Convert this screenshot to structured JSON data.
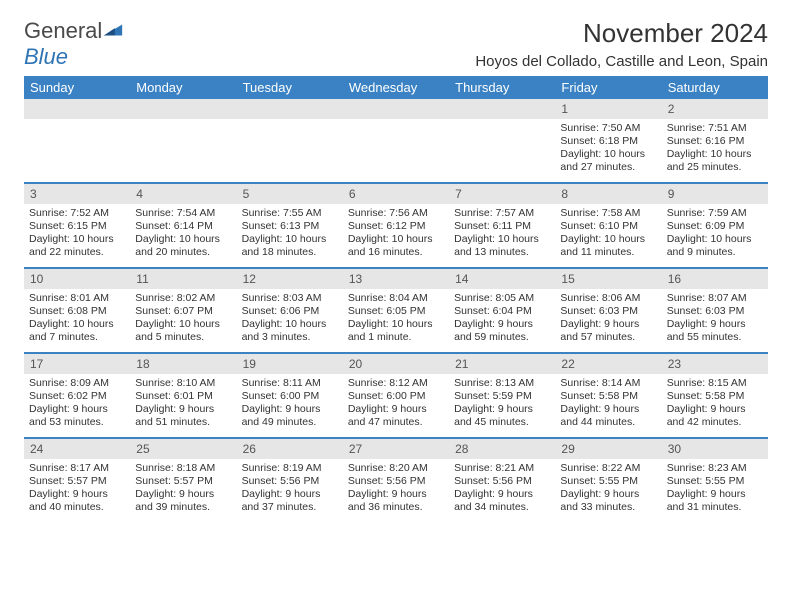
{
  "logo": {
    "text1": "General",
    "text2": "Blue"
  },
  "title": "November 2024",
  "location": "Hoyos del Collado, Castille and Leon, Spain",
  "day_headers": [
    "Sunday",
    "Monday",
    "Tuesday",
    "Wednesday",
    "Thursday",
    "Friday",
    "Saturday"
  ],
  "header_bg": "#3a82c4",
  "strip_bg": "#e6e6e6",
  "weeks": [
    {
      "nums": [
        "",
        "",
        "",
        "",
        "",
        "1",
        "2"
      ],
      "cells": [
        null,
        null,
        null,
        null,
        null,
        {
          "sunrise": "Sunrise: 7:50 AM",
          "sunset": "Sunset: 6:18 PM",
          "daylight": "Daylight: 10 hours and 27 minutes."
        },
        {
          "sunrise": "Sunrise: 7:51 AM",
          "sunset": "Sunset: 6:16 PM",
          "daylight": "Daylight: 10 hours and 25 minutes."
        }
      ]
    },
    {
      "nums": [
        "3",
        "4",
        "5",
        "6",
        "7",
        "8",
        "9"
      ],
      "cells": [
        {
          "sunrise": "Sunrise: 7:52 AM",
          "sunset": "Sunset: 6:15 PM",
          "daylight": "Daylight: 10 hours and 22 minutes."
        },
        {
          "sunrise": "Sunrise: 7:54 AM",
          "sunset": "Sunset: 6:14 PM",
          "daylight": "Daylight: 10 hours and 20 minutes."
        },
        {
          "sunrise": "Sunrise: 7:55 AM",
          "sunset": "Sunset: 6:13 PM",
          "daylight": "Daylight: 10 hours and 18 minutes."
        },
        {
          "sunrise": "Sunrise: 7:56 AM",
          "sunset": "Sunset: 6:12 PM",
          "daylight": "Daylight: 10 hours and 16 minutes."
        },
        {
          "sunrise": "Sunrise: 7:57 AM",
          "sunset": "Sunset: 6:11 PM",
          "daylight": "Daylight: 10 hours and 13 minutes."
        },
        {
          "sunrise": "Sunrise: 7:58 AM",
          "sunset": "Sunset: 6:10 PM",
          "daylight": "Daylight: 10 hours and 11 minutes."
        },
        {
          "sunrise": "Sunrise: 7:59 AM",
          "sunset": "Sunset: 6:09 PM",
          "daylight": "Daylight: 10 hours and 9 minutes."
        }
      ]
    },
    {
      "nums": [
        "10",
        "11",
        "12",
        "13",
        "14",
        "15",
        "16"
      ],
      "cells": [
        {
          "sunrise": "Sunrise: 8:01 AM",
          "sunset": "Sunset: 6:08 PM",
          "daylight": "Daylight: 10 hours and 7 minutes."
        },
        {
          "sunrise": "Sunrise: 8:02 AM",
          "sunset": "Sunset: 6:07 PM",
          "daylight": "Daylight: 10 hours and 5 minutes."
        },
        {
          "sunrise": "Sunrise: 8:03 AM",
          "sunset": "Sunset: 6:06 PM",
          "daylight": "Daylight: 10 hours and 3 minutes."
        },
        {
          "sunrise": "Sunrise: 8:04 AM",
          "sunset": "Sunset: 6:05 PM",
          "daylight": "Daylight: 10 hours and 1 minute."
        },
        {
          "sunrise": "Sunrise: 8:05 AM",
          "sunset": "Sunset: 6:04 PM",
          "daylight": "Daylight: 9 hours and 59 minutes."
        },
        {
          "sunrise": "Sunrise: 8:06 AM",
          "sunset": "Sunset: 6:03 PM",
          "daylight": "Daylight: 9 hours and 57 minutes."
        },
        {
          "sunrise": "Sunrise: 8:07 AM",
          "sunset": "Sunset: 6:03 PM",
          "daylight": "Daylight: 9 hours and 55 minutes."
        }
      ]
    },
    {
      "nums": [
        "17",
        "18",
        "19",
        "20",
        "21",
        "22",
        "23"
      ],
      "cells": [
        {
          "sunrise": "Sunrise: 8:09 AM",
          "sunset": "Sunset: 6:02 PM",
          "daylight": "Daylight: 9 hours and 53 minutes."
        },
        {
          "sunrise": "Sunrise: 8:10 AM",
          "sunset": "Sunset: 6:01 PM",
          "daylight": "Daylight: 9 hours and 51 minutes."
        },
        {
          "sunrise": "Sunrise: 8:11 AM",
          "sunset": "Sunset: 6:00 PM",
          "daylight": "Daylight: 9 hours and 49 minutes."
        },
        {
          "sunrise": "Sunrise: 8:12 AM",
          "sunset": "Sunset: 6:00 PM",
          "daylight": "Daylight: 9 hours and 47 minutes."
        },
        {
          "sunrise": "Sunrise: 8:13 AM",
          "sunset": "Sunset: 5:59 PM",
          "daylight": "Daylight: 9 hours and 45 minutes."
        },
        {
          "sunrise": "Sunrise: 8:14 AM",
          "sunset": "Sunset: 5:58 PM",
          "daylight": "Daylight: 9 hours and 44 minutes."
        },
        {
          "sunrise": "Sunrise: 8:15 AM",
          "sunset": "Sunset: 5:58 PM",
          "daylight": "Daylight: 9 hours and 42 minutes."
        }
      ]
    },
    {
      "nums": [
        "24",
        "25",
        "26",
        "27",
        "28",
        "29",
        "30"
      ],
      "cells": [
        {
          "sunrise": "Sunrise: 8:17 AM",
          "sunset": "Sunset: 5:57 PM",
          "daylight": "Daylight: 9 hours and 40 minutes."
        },
        {
          "sunrise": "Sunrise: 8:18 AM",
          "sunset": "Sunset: 5:57 PM",
          "daylight": "Daylight: 9 hours and 39 minutes."
        },
        {
          "sunrise": "Sunrise: 8:19 AM",
          "sunset": "Sunset: 5:56 PM",
          "daylight": "Daylight: 9 hours and 37 minutes."
        },
        {
          "sunrise": "Sunrise: 8:20 AM",
          "sunset": "Sunset: 5:56 PM",
          "daylight": "Daylight: 9 hours and 36 minutes."
        },
        {
          "sunrise": "Sunrise: 8:21 AM",
          "sunset": "Sunset: 5:56 PM",
          "daylight": "Daylight: 9 hours and 34 minutes."
        },
        {
          "sunrise": "Sunrise: 8:22 AM",
          "sunset": "Sunset: 5:55 PM",
          "daylight": "Daylight: 9 hours and 33 minutes."
        },
        {
          "sunrise": "Sunrise: 8:23 AM",
          "sunset": "Sunset: 5:55 PM",
          "daylight": "Daylight: 9 hours and 31 minutes."
        }
      ]
    }
  ]
}
